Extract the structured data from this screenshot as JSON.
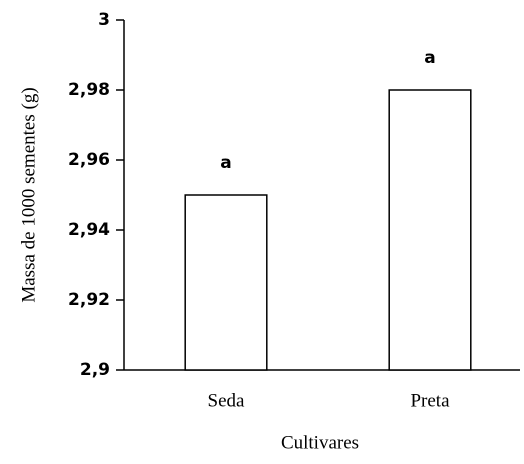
{
  "chart_data": {
    "type": "bar",
    "categories": [
      "Seda",
      "Preta"
    ],
    "values": [
      2.95,
      2.98
    ],
    "annotations": [
      "a",
      "a"
    ],
    "color": "#ffffff",
    "xlabel": "Cultivares",
    "ylabel": "Massa de 1000 sementes (g)",
    "ylim": [
      2.9,
      3
    ],
    "yticks": [
      {
        "value": 2.9,
        "label": "2,9"
      },
      {
        "value": 2.92,
        "label": "2,92"
      },
      {
        "value": 2.94,
        "label": "2,94"
      },
      {
        "value": 2.96,
        "label": "2,96"
      },
      {
        "value": 2.98,
        "label": "2,98"
      },
      3
    ],
    "grid": false
  }
}
